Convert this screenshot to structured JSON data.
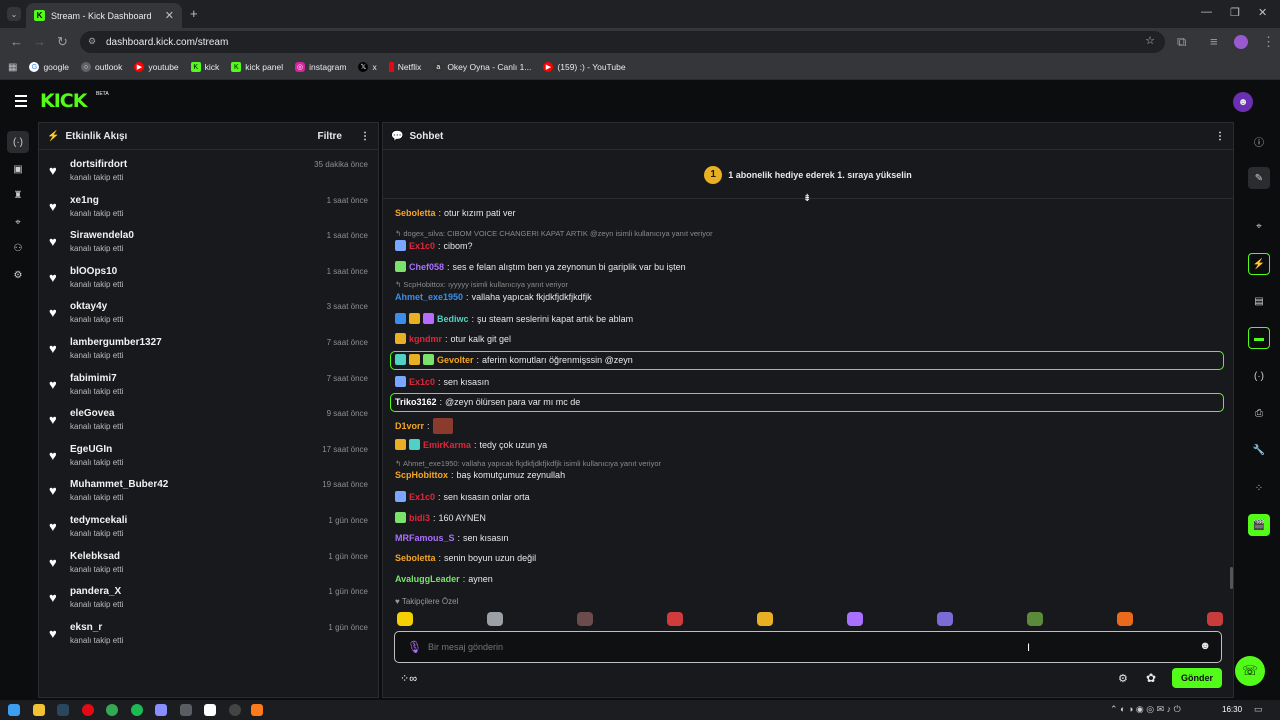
{
  "browser": {
    "tab_title": "Stream - Kick Dashboard",
    "url": "dashboard.kick.com/stream",
    "bookmarks": [
      "google",
      "outlook",
      "youtube",
      "kick",
      "kick panel",
      "instagram",
      "x",
      "Netflix",
      "Okey Oyna - Canlı 1...",
      "(159) :) - YouTube"
    ]
  },
  "header": {
    "logo": "KICK",
    "beta": "BETA"
  },
  "activity": {
    "title": "Etkinlik Akışı",
    "filter_label": "Filtre",
    "items": [
      {
        "name": "dortsifirdort",
        "sub": "kanalı takip etti",
        "time": "35 dakika önce"
      },
      {
        "name": "xe1ng",
        "sub": "kanalı takip etti",
        "time": "1 saat önce"
      },
      {
        "name": "Sirawendela0",
        "sub": "kanalı takip etti",
        "time": "1 saat önce"
      },
      {
        "name": "blOOps10",
        "sub": "kanalı takip etti",
        "time": "1 saat önce"
      },
      {
        "name": "oktay4y",
        "sub": "kanalı takip etti",
        "time": "3 saat önce"
      },
      {
        "name": "lambergumber1327",
        "sub": "kanalı takip etti",
        "time": "7 saat önce"
      },
      {
        "name": "fabimimi7",
        "sub": "kanalı takip etti",
        "time": "7 saat önce"
      },
      {
        "name": "eleGovea",
        "sub": "kanalı takip etti",
        "time": "9 saat önce"
      },
      {
        "name": "EgeUGIn",
        "sub": "kanalı takip etti",
        "time": "17 saat önce"
      },
      {
        "name": "Muhammet_Buber42",
        "sub": "kanalı takip etti",
        "time": "19 saat önce"
      },
      {
        "name": "tedymcekali",
        "sub": "kanalı takip etti",
        "time": "1 gün önce"
      },
      {
        "name": "Kelebksad",
        "sub": "kanalı takip etti",
        "time": "1 gün önce"
      },
      {
        "name": "pandera_X",
        "sub": "kanalı takip etti",
        "time": "1 gün önce"
      },
      {
        "name": "eksn_r",
        "sub": "kanalı takip etti",
        "time": "1 gün önce"
      }
    ]
  },
  "chat": {
    "title": "Sohbet",
    "pinned": "1 abonelik hediye ederek 1. sıraya yükselin",
    "pinned_rank": "1",
    "messages": [
      {
        "user": "Seboletta",
        "color": "#f5a623",
        "text": "otur kızım pati ver"
      },
      {
        "reply": "dogex_silva: CIBOM VOICE CHANGERI KAPAT ARTIK @zeyn isimli kullanıcıya yanıt veriyor"
      },
      {
        "user": "Ex1c0",
        "color": "#e5233b",
        "text": "cibom?"
      },
      {
        "user": "Chef058",
        "color": "#a970ff",
        "text": "ses e felan alıştım ben ya zeynonun bi gariplik var bu işten"
      },
      {
        "reply": "ScpHobittox: ıyyyyy isimli kullanıcıya yanıt veriyor"
      },
      {
        "user": "Ahmet_exe1950",
        "color": "#3b8eea",
        "text": "vallaha yapıcak fkjdkfjdkfjkdfjk"
      },
      {
        "user": "Bediwc",
        "color": "#4fd1c5",
        "text": "şu steam seslerini kapat artık be ablam"
      },
      {
        "user": "kgndmr",
        "color": "#e5233b",
        "text": "otur kalk git gel"
      },
      {
        "user": "Gevolter",
        "color": "#f5a623",
        "text": "aferim komutları öğrenmişssin @zeyn"
      },
      {
        "user": "Ex1c0",
        "color": "#e5233b",
        "text": "sen kısasın"
      },
      {
        "user": "Triko3162",
        "color": "#ffffff",
        "text": "@zeyn ölürsen para var mı mc de"
      },
      {
        "user": "D1vorr",
        "color": "#f5a623",
        "text": ""
      },
      {
        "user": "EmirKarma",
        "color": "#e5233b",
        "text": "tedy çok uzun ya"
      },
      {
        "reply": "Ahmet_exe1950: vallaha yapıcak fkjdkfjdkfjkdfjk isimli kullanıcıya yanıt veriyor"
      },
      {
        "user": "ScpHobittox",
        "color": "#f5a623",
        "text": "baş komutçumuz zeynullah"
      },
      {
        "user": "Ex1c0",
        "color": "#e5233b",
        "text": "sen kısasın onlar orta"
      },
      {
        "user": "bidi3",
        "color": "#e5233b",
        "text": "160 AYNEN"
      },
      {
        "user": "MRFamous_S",
        "color": "#a970ff",
        "text": "sen kısasın"
      },
      {
        "user": "Seboletta",
        "color": "#f5a623",
        "text": "senin boyun uzun değil"
      },
      {
        "user": "AvaluggLeader",
        "color": "#7be36c",
        "text": "aynen"
      }
    ],
    "emote_section": "Takipçilere Özel",
    "input_placeholder": "Bir mesaj gönderin",
    "send_label": "Gönder"
  },
  "taskbar": {
    "time": "16:30"
  },
  "colors": {
    "accent": "#53fc18",
    "bg": "#0b0d0f",
    "panel": "#18191c"
  }
}
